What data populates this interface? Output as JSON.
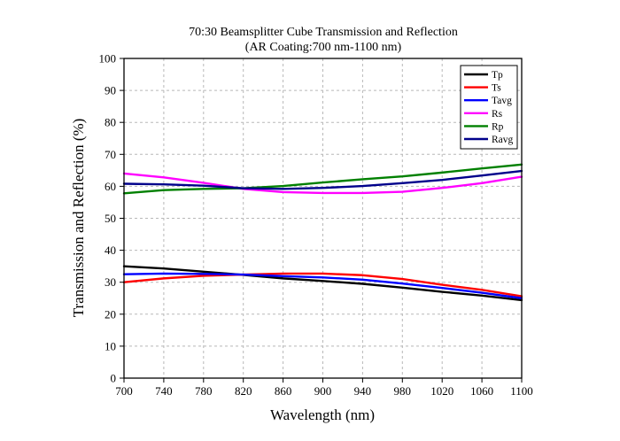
{
  "chart_data": {
    "type": "line",
    "title": "70:30 Beamsplitter Cube Transmission and Reflection",
    "subtitle": "(AR Coating:700 nm-1100 nm)",
    "xlabel": "Wavelength (nm)",
    "ylabel": "Transmission and Reflection (%)",
    "xlim": [
      700,
      1100
    ],
    "ylim": [
      0,
      100
    ],
    "xticks": [
      700,
      740,
      780,
      820,
      860,
      900,
      940,
      980,
      1020,
      1060,
      1100
    ],
    "yticks": [
      0,
      10,
      20,
      30,
      40,
      50,
      60,
      70,
      80,
      90,
      100
    ],
    "grid": true,
    "legend_position": "top-right",
    "x": [
      700,
      740,
      780,
      820,
      860,
      900,
      940,
      980,
      1020,
      1060,
      1100
    ],
    "series": [
      {
        "name": "Tp",
        "color": "#000000",
        "values": [
          35.0,
          34.3,
          33.3,
          32.3,
          31.2,
          30.4,
          29.5,
          28.3,
          27.0,
          25.8,
          24.4
        ]
      },
      {
        "name": "Ts",
        "color": "#ff0000",
        "values": [
          30.0,
          31.2,
          32.0,
          32.4,
          32.7,
          32.7,
          32.2,
          31.0,
          29.2,
          27.6,
          25.6
        ]
      },
      {
        "name": "Tavg",
        "color": "#0000ff",
        "values": [
          32.5,
          32.7,
          32.6,
          32.4,
          31.9,
          31.5,
          30.8,
          29.6,
          28.2,
          26.7,
          25.0
        ]
      },
      {
        "name": "Rs",
        "color": "#ff00ff",
        "values": [
          64.0,
          62.8,
          61.1,
          59.2,
          58.2,
          57.9,
          57.9,
          58.3,
          59.5,
          61.0,
          63.0
        ]
      },
      {
        "name": "Rp",
        "color": "#008000",
        "values": [
          57.8,
          58.8,
          59.2,
          59.4,
          60.1,
          61.2,
          62.2,
          63.1,
          64.3,
          65.6,
          66.8
        ]
      },
      {
        "name": "Ravg",
        "color": "#00008b",
        "values": [
          60.8,
          60.6,
          60.2,
          59.4,
          59.2,
          59.5,
          60.1,
          61.0,
          62.0,
          63.4,
          64.8
        ]
      }
    ]
  }
}
